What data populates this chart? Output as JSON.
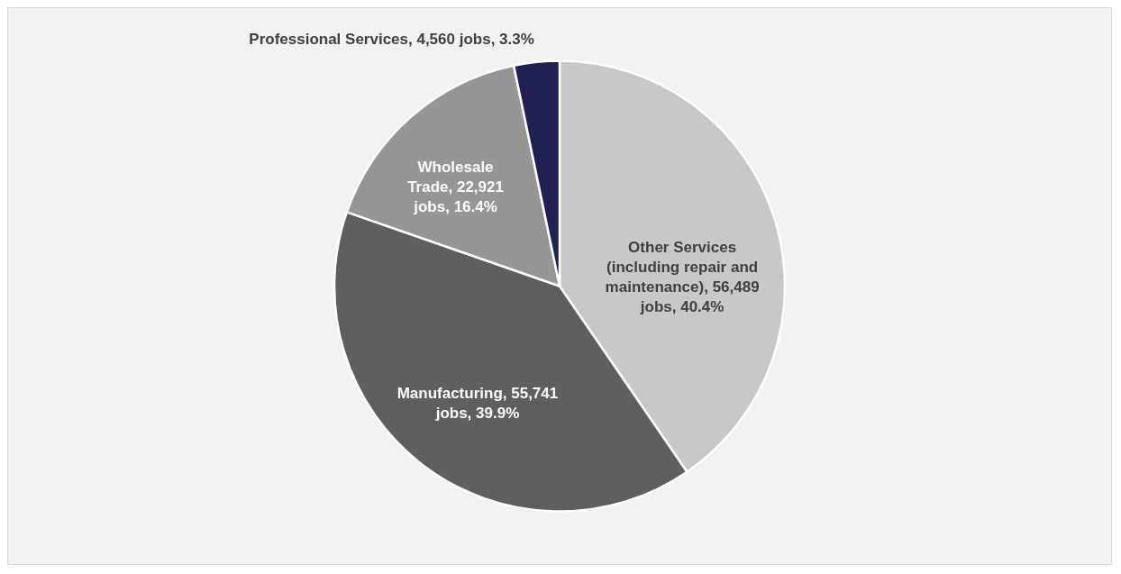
{
  "chart_data": {
    "type": "pie",
    "categories": [
      "Other Services (including repair and maintenance)",
      "Manufacturing",
      "Wholesale Trade",
      "Professional Services"
    ],
    "values": [
      56489,
      55741,
      22921,
      4560
    ],
    "colors": [
      "#c8c8c8",
      "#5f5f5f",
      "#969696",
      "#1f2152"
    ],
    "value_labels": [
      "56,489 jobs, 40.4%",
      "55,741 jobs, 39.9%",
      "22,921 jobs, 16.4%",
      "4,560 jobs, 3.3%"
    ]
  }
}
